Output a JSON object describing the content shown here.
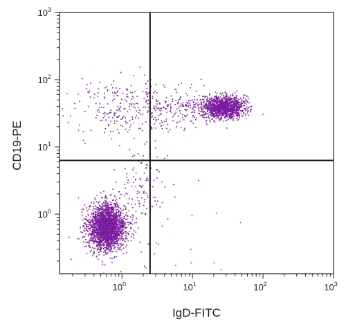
{
  "chart_data": {
    "type": "scatter",
    "title": "",
    "xlabel": "IgD-FITC",
    "ylabel": "CD19-PE",
    "xscale": "log",
    "yscale": "log",
    "xlim": [
      0.13,
      1000
    ],
    "ylim": [
      0.13,
      1000
    ],
    "xticks": [
      {
        "value": 1,
        "base": "10",
        "exp": "0"
      },
      {
        "value": 10,
        "base": "10",
        "exp": "1"
      },
      {
        "value": 100,
        "base": "10",
        "exp": "2"
      },
      {
        "value": 1000,
        "base": "10",
        "exp": "3"
      }
    ],
    "yticks": [
      {
        "value": 1,
        "base": "10",
        "exp": "0"
      },
      {
        "value": 10,
        "base": "10",
        "exp": "1"
      },
      {
        "value": 100,
        "base": "10",
        "exp": "2"
      },
      {
        "value": 1000,
        "base": "10",
        "exp": "3"
      }
    ],
    "quadrant_gates": {
      "x": 2.5,
      "y": 6.3
    },
    "grid": false,
    "point_color": "#7a1a9e",
    "populations": [
      {
        "center_x": 0.6,
        "center_y": 0.65,
        "spread_log_x": 0.13,
        "spread_log_y": 0.17,
        "count": 2400
      },
      {
        "center_x": 27,
        "center_y": 40,
        "spread_log_x": 0.15,
        "spread_log_y": 0.08,
        "count": 1300
      },
      {
        "center_x": 1.2,
        "center_y": 40,
        "spread_log_x": 0.4,
        "spread_log_y": 0.2,
        "count": 230
      },
      {
        "center_x": 6,
        "center_y": 40,
        "spread_log_x": 0.3,
        "spread_log_y": 0.15,
        "count": 180
      },
      {
        "center_x": 1.8,
        "center_y": 2.5,
        "spread_log_x": 0.2,
        "spread_log_y": 0.35,
        "count": 120
      },
      {
        "center_x": 3,
        "center_y": 1,
        "spread_log_x": 0.5,
        "spread_log_y": 0.6,
        "count": 40
      }
    ]
  }
}
